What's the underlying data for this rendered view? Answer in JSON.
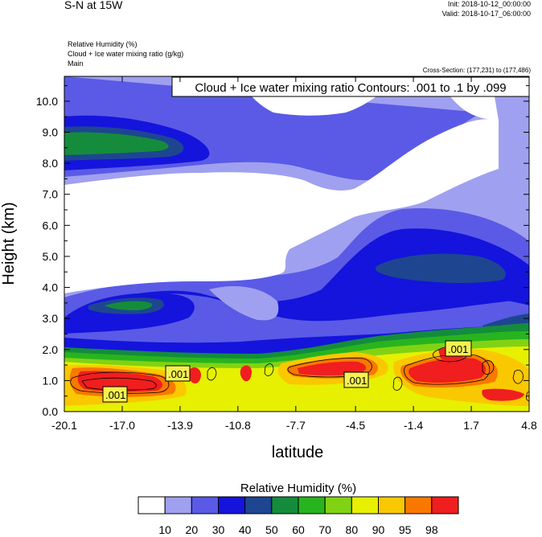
{
  "header": {
    "title": "S-N at 15W",
    "init": "Init: 2018-10-12_00:00:00",
    "valid": "Valid: 2018-10-17_06:00:00",
    "field1": "Relative Humidity   (%)",
    "field2": "Cloud + Ice water mixing ratio   (g/kg)",
    "field3": "Main",
    "cross_section": "Cross-Section: (177,231) to (177,486)"
  },
  "chart_data": {
    "type": "heatmap",
    "title": "Cloud + Ice water mixing ratio Contours: .001 to .1 by .099",
    "xlabel": "latitude",
    "ylabel": "Height (km)",
    "xlim": [
      -20.1,
      4.8
    ],
    "ylim": [
      0.0,
      10.8
    ],
    "x_ticks": [
      "-20.1",
      "-17.0",
      "-13.9",
      "-10.8",
      "-7.7",
      "-4.5",
      "-1.4",
      "1.7",
      "4.8"
    ],
    "y_ticks": [
      "0.0",
      "1.0",
      "2.0",
      "3.0",
      "4.0",
      "5.0",
      "6.0",
      "7.0",
      "8.0",
      "9.0",
      "10.0"
    ],
    "contour_labels": [
      ".001",
      ".001",
      ".001",
      ".001"
    ],
    "colorbar": {
      "title": "Relative Humidity  (%)",
      "tick_labels": [
        "10",
        "20",
        "30",
        "40",
        "50",
        "60",
        "70",
        "80",
        "90",
        "95",
        "98"
      ],
      "colors": [
        "#ffffff",
        "#a0a0f0",
        "#5a5ae6",
        "#1414dc",
        "#1e4690",
        "#148c3c",
        "#28b41e",
        "#82d214",
        "#e6f000",
        "#fac800",
        "#fa7800",
        "#f01e1e"
      ]
    }
  }
}
